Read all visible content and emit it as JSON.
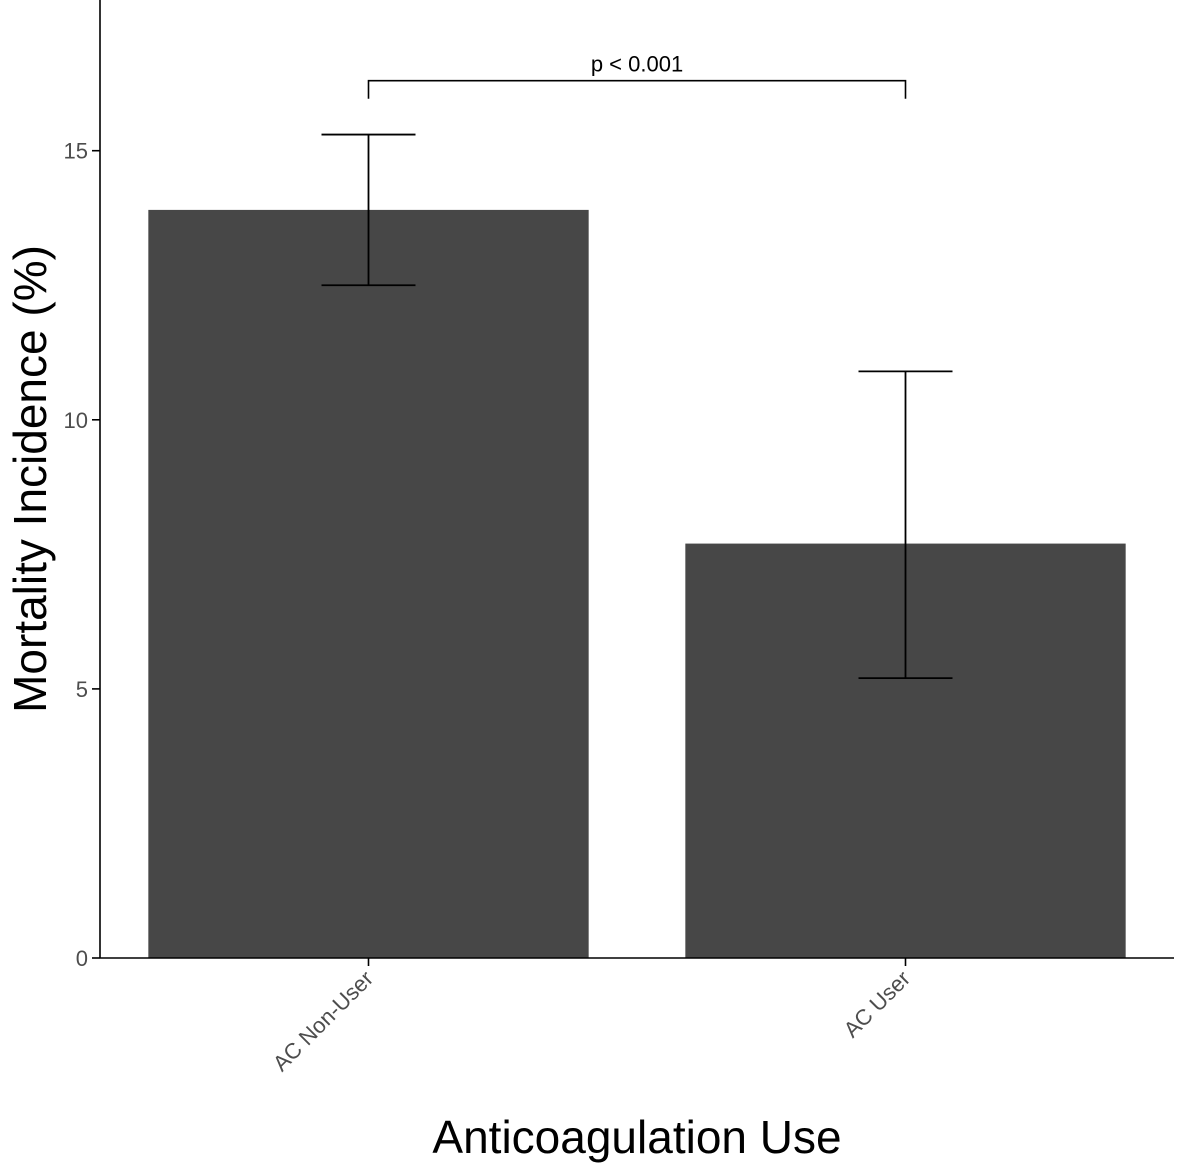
{
  "chart_data": {
    "type": "bar",
    "xlabel": "Anticoagulation Use",
    "ylabel": "Mortality Incidence (%)",
    "categories": [
      "AC Non-User",
      "AC User"
    ],
    "values": [
      13.9,
      7.7
    ],
    "error_bars": [
      {
        "low": 12.5,
        "high": 15.3
      },
      {
        "low": 5.2,
        "high": 10.9
      }
    ],
    "ylim": [
      0,
      17.8
    ],
    "yticks": [
      0,
      5,
      10,
      15
    ],
    "grid": false,
    "annotation": {
      "text": "p < 0.001",
      "between": [
        "AC Non-User",
        "AC User"
      ],
      "y": 16.3
    },
    "colors": {
      "bar": "#474747",
      "axis": "#000000",
      "error_bar": "#000000"
    }
  }
}
